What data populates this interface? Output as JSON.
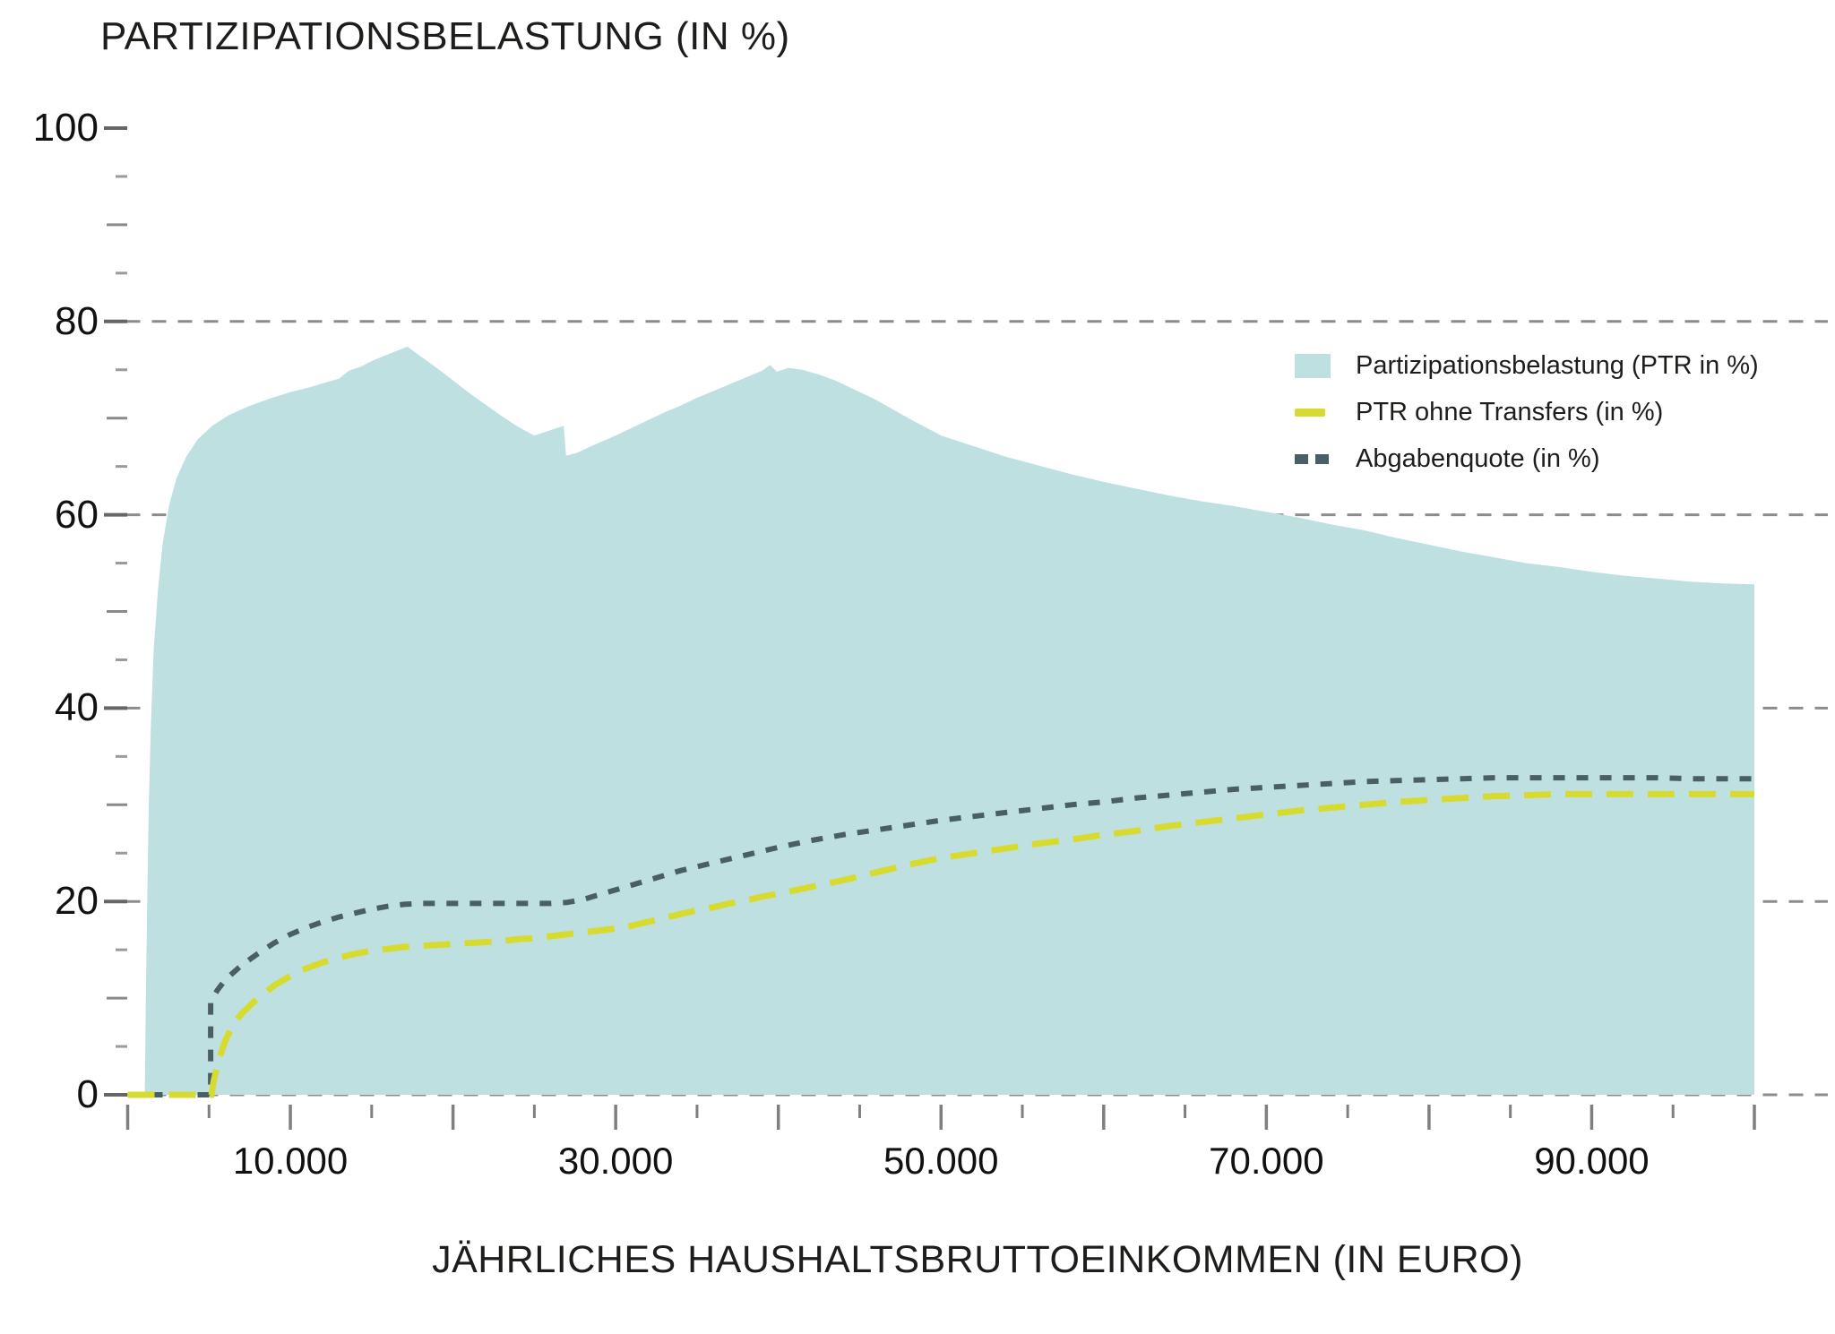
{
  "title": "PARTIZIPATIONSBELASTUNG (IN %)",
  "x_axis": {
    "title": "JÄHRLICHES HAUSHALTSBRUTTOEINKOMMEN (IN EURO)",
    "labeled_ticks": [
      10000,
      30000,
      50000,
      70000,
      90000
    ],
    "tick_labels": [
      "10.000",
      "30.000",
      "50.000",
      "70.000",
      "90.000"
    ],
    "minor_tick_step": 5000,
    "major_tick_step": 10000,
    "range": [
      0,
      100000
    ]
  },
  "y_axis": {
    "labeled_ticks": [
      0,
      20,
      40,
      60,
      80,
      100
    ],
    "tick_labels": [
      "0",
      "20",
      "40",
      "60",
      "80",
      "100"
    ],
    "minor_tick_step": 5,
    "mid_tick_step": 10,
    "major_tick_step": 20,
    "range": [
      0,
      100
    ],
    "gridlines": [
      0,
      20,
      40,
      60,
      80
    ]
  },
  "legend": [
    {
      "label": "Partizipationsbelastung (PTR in %)",
      "swatch": "area",
      "color": "#bee0e1"
    },
    {
      "label": "PTR ohne Transfers (in %)",
      "swatch": "dash",
      "color": "#d7db30"
    },
    {
      "label": "Abgabenquote (in %)",
      "swatch": "dots",
      "color": "#4a5e66"
    }
  ],
  "colors": {
    "background": "#ffffff",
    "area_fill": "#bee0e1",
    "ptr_line": "#d7db30",
    "abgaben_line": "#4a5e66",
    "gridline": "#8c8c8c",
    "tick": "#7f7f7f",
    "text": "#1d1d1b"
  },
  "chart_data": {
    "type": "area",
    "title": "PARTIZIPATIONSBELASTUNG (IN %)",
    "xlabel": "JÄHRLICHES HAUSHALTSBRUTTOEINKOMMEN (IN EURO)",
    "ylabel": "PARTIZIPATIONSBELASTUNG (IN %)",
    "xlim": [
      0,
      100000
    ],
    "ylim": [
      0,
      100
    ],
    "grid": "dashed-horizontal",
    "legend_position": "upper-right-inside",
    "series": [
      {
        "name": "Partizipationsbelastung (PTR in %)",
        "style": "area",
        "color": "#bee0e1",
        "points": [
          [
            1050,
            0
          ],
          [
            1120,
            10
          ],
          [
            1200,
            20
          ],
          [
            1300,
            30
          ],
          [
            1420,
            38
          ],
          [
            1600,
            46
          ],
          [
            1850,
            52
          ],
          [
            2150,
            57
          ],
          [
            2550,
            61
          ],
          [
            3000,
            63.8
          ],
          [
            3600,
            66
          ],
          [
            4300,
            67.8
          ],
          [
            5200,
            69.2
          ],
          [
            6200,
            70.3
          ],
          [
            7400,
            71.2
          ],
          [
            8700,
            72
          ],
          [
            10000,
            72.7
          ],
          [
            11000,
            73.1
          ],
          [
            12000,
            73.6
          ],
          [
            13000,
            74.1
          ],
          [
            13600,
            74.9
          ],
          [
            14300,
            75.3
          ],
          [
            15000,
            75.9
          ],
          [
            16000,
            76.6
          ],
          [
            17200,
            77.4
          ],
          [
            18000,
            76.4
          ],
          [
            19000,
            75.2
          ],
          [
            20000,
            73.9
          ],
          [
            21000,
            72.6
          ],
          [
            22000,
            71.4
          ],
          [
            23000,
            70.2
          ],
          [
            24000,
            69.1
          ],
          [
            25000,
            68.2
          ],
          [
            25900,
            68.7
          ],
          [
            26800,
            69.2
          ],
          [
            26950,
            66.1
          ],
          [
            27600,
            66.4
          ],
          [
            28500,
            67.1
          ],
          [
            30000,
            68.2
          ],
          [
            31000,
            69
          ],
          [
            32000,
            69.8
          ],
          [
            33000,
            70.6
          ],
          [
            34000,
            71.3
          ],
          [
            35000,
            72.1
          ],
          [
            36000,
            72.8
          ],
          [
            37000,
            73.5
          ],
          [
            38000,
            74.2
          ],
          [
            39000,
            74.9
          ],
          [
            39500,
            75.5
          ],
          [
            39900,
            74.8
          ],
          [
            40600,
            75.2
          ],
          [
            41500,
            75
          ],
          [
            42500,
            74.5
          ],
          [
            43500,
            73.9
          ],
          [
            44500,
            73.1
          ],
          [
            46000,
            71.9
          ],
          [
            48000,
            70
          ],
          [
            50000,
            68.2
          ],
          [
            52000,
            67.1
          ],
          [
            54000,
            66
          ],
          [
            56000,
            65.1
          ],
          [
            58000,
            64.2
          ],
          [
            60000,
            63.4
          ],
          [
            62000,
            62.7
          ],
          [
            64000,
            62
          ],
          [
            66000,
            61.4
          ],
          [
            68000,
            60.9
          ],
          [
            70000,
            60.3
          ],
          [
            72000,
            59.7
          ],
          [
            74000,
            59
          ],
          [
            76000,
            58.4
          ],
          [
            78000,
            57.6
          ],
          [
            80000,
            56.9
          ],
          [
            82000,
            56.2
          ],
          [
            84000,
            55.6
          ],
          [
            86000,
            55
          ],
          [
            88000,
            54.6
          ],
          [
            90000,
            54.1
          ],
          [
            92000,
            53.7
          ],
          [
            94000,
            53.4
          ],
          [
            96000,
            53.1
          ],
          [
            98000,
            52.9
          ],
          [
            100000,
            52.8
          ]
        ]
      },
      {
        "name": "PTR ohne Transfers (in %)",
        "style": "dashed",
        "color": "#d7db30",
        "points": [
          [
            0,
            0
          ],
          [
            5150,
            0
          ],
          [
            5300,
            1.5
          ],
          [
            5600,
            3.6
          ],
          [
            6000,
            5.6
          ],
          [
            6500,
            7.3
          ],
          [
            7000,
            8.4
          ],
          [
            8000,
            10
          ],
          [
            9000,
            11.3
          ],
          [
            10000,
            12.3
          ],
          [
            11000,
            13.1
          ],
          [
            12000,
            13.7
          ],
          [
            13000,
            14.2
          ],
          [
            14000,
            14.6
          ],
          [
            15000,
            14.9
          ],
          [
            16000,
            15.1
          ],
          [
            17000,
            15.3
          ],
          [
            18000,
            15.4
          ],
          [
            19000,
            15.5
          ],
          [
            20000,
            15.6
          ],
          [
            21000,
            15.7
          ],
          [
            22000,
            15.8
          ],
          [
            23000,
            15.9
          ],
          [
            24000,
            16.1
          ],
          [
            25000,
            16.2
          ],
          [
            26000,
            16.4
          ],
          [
            27000,
            16.6
          ],
          [
            28000,
            16.8
          ],
          [
            29000,
            17
          ],
          [
            30000,
            17.2
          ],
          [
            31000,
            17.5
          ],
          [
            32000,
            17.9
          ],
          [
            33000,
            18.3
          ],
          [
            34000,
            18.7
          ],
          [
            35000,
            19.1
          ],
          [
            36000,
            19.4
          ],
          [
            37000,
            19.8
          ],
          [
            38000,
            20.1
          ],
          [
            39000,
            20.5
          ],
          [
            40000,
            20.8
          ],
          [
            42000,
            21.5
          ],
          [
            44000,
            22.2
          ],
          [
            46000,
            23
          ],
          [
            48000,
            23.8
          ],
          [
            50000,
            24.5
          ],
          [
            52000,
            25
          ],
          [
            54000,
            25.5
          ],
          [
            56000,
            26
          ],
          [
            58000,
            26.4
          ],
          [
            60000,
            26.9
          ],
          [
            62000,
            27.3
          ],
          [
            64000,
            27.8
          ],
          [
            66000,
            28.2
          ],
          [
            68000,
            28.6
          ],
          [
            70000,
            29
          ],
          [
            72000,
            29.4
          ],
          [
            74000,
            29.7
          ],
          [
            76000,
            30
          ],
          [
            78000,
            30.3
          ],
          [
            80000,
            30.5
          ],
          [
            82000,
            30.7
          ],
          [
            84000,
            30.9
          ],
          [
            86000,
            31
          ],
          [
            88000,
            31.1
          ],
          [
            90000,
            31.1
          ],
          [
            92000,
            31.1
          ],
          [
            94000,
            31.1
          ],
          [
            96000,
            31.1
          ],
          [
            98000,
            31.1
          ],
          [
            100000,
            31.1
          ]
        ]
      },
      {
        "name": "Abgabenquote (in %)",
        "style": "dotted",
        "color": "#4a5e66",
        "points": [
          [
            0,
            0
          ],
          [
            5100,
            0
          ],
          [
            5100,
            9.6
          ],
          [
            5500,
            10.8
          ],
          [
            6000,
            11.9
          ],
          [
            7000,
            13.4
          ],
          [
            8000,
            14.6
          ],
          [
            9000,
            15.7
          ],
          [
            10000,
            16.6
          ],
          [
            11000,
            17.3
          ],
          [
            12000,
            17.9
          ],
          [
            13000,
            18.4
          ],
          [
            14000,
            18.8
          ],
          [
            15000,
            19.2
          ],
          [
            16000,
            19.5
          ],
          [
            17000,
            19.7
          ],
          [
            18000,
            19.8
          ],
          [
            20000,
            19.8
          ],
          [
            22000,
            19.8
          ],
          [
            24000,
            19.8
          ],
          [
            26000,
            19.8
          ],
          [
            27000,
            19.9
          ],
          [
            28000,
            20.2
          ],
          [
            29000,
            20.7
          ],
          [
            30000,
            21.2
          ],
          [
            31000,
            21.7
          ],
          [
            32000,
            22.2
          ],
          [
            33000,
            22.7
          ],
          [
            34000,
            23.2
          ],
          [
            35000,
            23.6
          ],
          [
            36000,
            24
          ],
          [
            37000,
            24.4
          ],
          [
            38000,
            24.8
          ],
          [
            39000,
            25.2
          ],
          [
            40000,
            25.6
          ],
          [
            42000,
            26.3
          ],
          [
            44000,
            26.9
          ],
          [
            46000,
            27.4
          ],
          [
            48000,
            27.9
          ],
          [
            50000,
            28.4
          ],
          [
            52000,
            28.8
          ],
          [
            54000,
            29.2
          ],
          [
            56000,
            29.6
          ],
          [
            58000,
            30
          ],
          [
            60000,
            30.3
          ],
          [
            62000,
            30.7
          ],
          [
            64000,
            31
          ],
          [
            66000,
            31.3
          ],
          [
            68000,
            31.6
          ],
          [
            70000,
            31.8
          ],
          [
            72000,
            32
          ],
          [
            74000,
            32.2
          ],
          [
            76000,
            32.4
          ],
          [
            78000,
            32.5
          ],
          [
            80000,
            32.6
          ],
          [
            82000,
            32.7
          ],
          [
            84000,
            32.8
          ],
          [
            86000,
            32.8
          ],
          [
            88000,
            32.8
          ],
          [
            90000,
            32.8
          ],
          [
            92000,
            32.8
          ],
          [
            94000,
            32.8
          ],
          [
            96000,
            32.7
          ],
          [
            98000,
            32.7
          ],
          [
            100000,
            32.7
          ]
        ]
      }
    ]
  }
}
